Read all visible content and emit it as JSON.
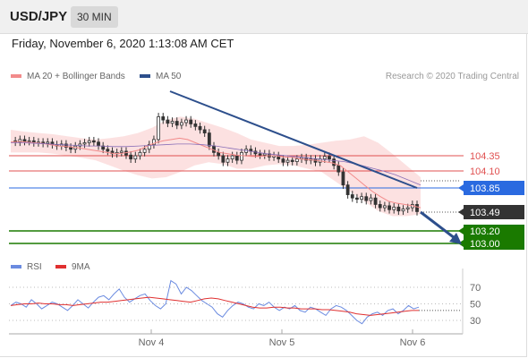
{
  "symbol": "USD/JPY",
  "timeframe": "30 MIN",
  "timestamp": "Friday, November 6, 2020 1:13:08 AM CET",
  "legend": {
    "ma_bb": "MA 20 + Bollinger Bands",
    "ma50": "MA 50",
    "copyright": "Research © 2020 Trading Central",
    "rsi": "RSI",
    "ma9": "9MA"
  },
  "colors": {
    "ma_bb": "#f28b8b",
    "ma50": "#2d4f8c",
    "bb_fill": "#fbdcdc",
    "support": "#1a7a00",
    "pivot": "#2a6ae0",
    "resistance": "#e05050",
    "last": "#333333",
    "rsi": "#6b8be0",
    "ma9": "#e03030"
  },
  "levels": [
    {
      "value": "104.35",
      "kind": "resistance"
    },
    {
      "value": "104.10",
      "kind": "resistance"
    },
    {
      "value": "103.85",
      "kind": "pivot"
    },
    {
      "value": "103.49",
      "kind": "last"
    },
    {
      "value": "103.20",
      "kind": "support"
    },
    {
      "value": "103.00",
      "kind": "support"
    }
  ],
  "xaxis": [
    "Nov 4",
    "Nov 5",
    "Nov 6"
  ],
  "rsi_ticks": [
    "70",
    "50",
    "30"
  ],
  "chart_data": {
    "type": "candlestick",
    "price_range": [
      102.9,
      105.3
    ],
    "close_series": [
      104.58,
      104.56,
      104.6,
      104.57,
      104.58,
      104.55,
      104.56,
      104.54,
      104.56,
      104.52,
      104.5,
      104.53,
      104.48,
      104.45,
      104.5,
      104.53,
      104.55,
      104.58,
      104.56,
      104.5,
      104.45,
      104.42,
      104.38,
      104.4,
      104.42,
      104.36,
      104.3,
      104.35,
      104.4,
      104.45,
      104.52,
      104.6,
      104.95,
      104.9,
      104.85,
      104.88,
      104.82,
      104.86,
      104.9,
      104.84,
      104.8,
      104.75,
      104.7,
      104.5,
      104.4,
      104.35,
      104.25,
      104.3,
      104.35,
      104.28,
      104.4,
      104.45,
      104.42,
      104.38,
      104.36,
      104.38,
      104.33,
      104.35,
      104.3,
      104.25,
      104.28,
      104.26,
      104.3,
      104.32,
      104.28,
      104.3,
      104.25,
      104.3,
      104.34,
      104.3,
      104.2,
      104.1,
      103.9,
      103.75,
      103.7,
      103.68,
      103.72,
      103.66,
      103.7,
      103.6,
      103.55,
      103.58,
      103.52,
      103.56,
      103.5,
      103.53,
      103.55,
      103.6,
      103.49
    ],
    "ma20": [
      104.56,
      104.57,
      104.56,
      104.55,
      104.54,
      104.52,
      104.5,
      104.49,
      104.48,
      104.46,
      104.44,
      104.42,
      104.4,
      104.38,
      104.39,
      104.41,
      104.44,
      104.5,
      104.55,
      104.58,
      104.6,
      104.62,
      104.6,
      104.55,
      104.5,
      104.45,
      104.4,
      104.38,
      104.36,
      104.35,
      104.34,
      104.34,
      104.35,
      104.35,
      104.33,
      104.33,
      104.3,
      104.29,
      104.28,
      104.26,
      104.24,
      104.2,
      104.1,
      104.0,
      103.9,
      103.8,
      103.72,
      103.65,
      103.62,
      103.6,
      103.58,
      103.55
    ],
    "ma50": [
      104.55,
      104.55,
      104.54,
      104.53,
      104.52,
      104.51,
      104.5,
      104.5,
      104.49,
      104.49,
      104.5,
      104.51,
      104.52,
      104.53,
      104.53,
      104.52,
      104.5,
      104.47,
      104.44,
      104.41,
      104.38,
      104.36,
      104.34,
      104.32,
      104.3,
      104.28,
      104.26,
      104.22,
      104.17,
      104.12,
      104.06,
      103.98,
      103.9
    ],
    "bb_upper": [
      104.75,
      104.72,
      104.7,
      104.68,
      104.65,
      104.62,
      104.6,
      104.62,
      104.65,
      104.7,
      104.78,
      104.9,
      104.95,
      104.92,
      104.85,
      104.78,
      104.7,
      104.6,
      104.55,
      104.5,
      104.5,
      104.52,
      104.55,
      104.58,
      104.6,
      104.65,
      104.55,
      104.38,
      104.2,
      104.02
    ],
    "bb_lower": [
      104.4,
      104.4,
      104.4,
      104.38,
      104.35,
      104.32,
      104.28,
      104.2,
      104.12,
      104.05,
      104.0,
      104.02,
      104.1,
      104.2,
      104.25,
      104.22,
      104.15,
      104.15,
      104.2,
      104.22,
      104.2,
      104.15,
      104.1,
      103.95,
      103.8,
      103.65,
      103.5,
      103.42,
      103.42,
      103.45
    ],
    "trendline": [
      [
        104.95,
        0
      ],
      [
        103.85,
        1
      ]
    ],
    "forecast_arrow": [
      [
        103.49,
        0
      ],
      [
        103.0,
        1
      ]
    ],
    "rsi": [
      48,
      52,
      50,
      46,
      55,
      50,
      44,
      48,
      52,
      50,
      46,
      42,
      48,
      55,
      50,
      45,
      52,
      58,
      60,
      55,
      62,
      68,
      58,
      52,
      56,
      60,
      62,
      54,
      48,
      44,
      50,
      78,
      74,
      62,
      70,
      66,
      60,
      54,
      50,
      46,
      38,
      34,
      42,
      48,
      52,
      50,
      46,
      44,
      50,
      48,
      52,
      46,
      42,
      46,
      44,
      48,
      42,
      40,
      46,
      44,
      40,
      36,
      44,
      48,
      46,
      42,
      36,
      30,
      26,
      34,
      38,
      40,
      36,
      42,
      44,
      38,
      42,
      48,
      44,
      46
    ],
    "rsi_ma9": [
      48,
      49,
      50,
      50,
      51,
      50,
      50,
      49,
      49,
      48,
      49,
      50,
      51,
      52,
      52,
      53,
      54,
      55,
      56,
      57,
      58,
      57,
      56,
      55,
      54,
      53,
      52,
      54,
      56,
      57,
      56,
      54,
      52,
      50,
      48,
      46,
      45,
      45,
      46,
      46,
      45,
      45,
      44,
      44,
      44,
      43,
      43,
      42,
      41,
      40,
      38,
      37,
      36,
      37,
      38,
      39,
      40,
      41,
      42,
      42
    ],
    "rsi_range": [
      0,
      100
    ]
  }
}
